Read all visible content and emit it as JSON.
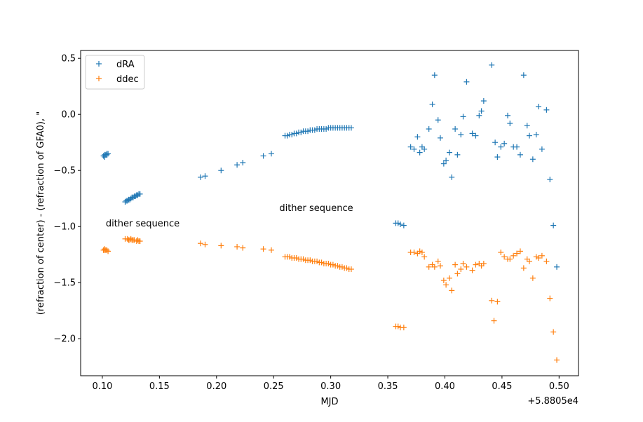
{
  "chart_data": {
    "type": "scatter",
    "title": "",
    "xlabel": "MJD",
    "ylabel": "(refraction of center) - (refraction of GFA0), \"",
    "x_offset_label": "+5.8805e4",
    "xlim": [
      0.081,
      0.517
    ],
    "ylim": [
      -2.33,
      0.57
    ],
    "x_ticks": [
      0.1,
      0.15,
      0.2,
      0.25,
      0.3,
      0.35,
      0.4,
      0.45,
      0.5
    ],
    "x_tick_labels": [
      "0.10",
      "0.15",
      "0.20",
      "0.25",
      "0.30",
      "0.35",
      "0.40",
      "0.45",
      "0.50"
    ],
    "y_ticks": [
      0.5,
      0.0,
      -0.5,
      -1.0,
      -1.5,
      -2.0
    ],
    "y_tick_labels": [
      "0.5",
      "0.0",
      "−0.5",
      "−1.0",
      "−1.5",
      "−2.0"
    ],
    "grid": false,
    "legend_position": "top-left",
    "annotations": [
      {
        "text": "dither sequence",
        "x": 0.103,
        "y": -1.0
      },
      {
        "text": "dither sequence",
        "x": 0.255,
        "y": -0.86
      }
    ],
    "series": [
      {
        "name": "dRA",
        "color": "#1f77b4",
        "marker": "+",
        "points": [
          [
            0.101,
            -0.37
          ],
          [
            0.102,
            -0.36
          ],
          [
            0.103,
            -0.36
          ],
          [
            0.104,
            -0.35
          ],
          [
            0.105,
            -0.35
          ],
          [
            0.102,
            -0.38
          ],
          [
            0.104,
            -0.36
          ],
          [
            0.12,
            -0.78
          ],
          [
            0.121,
            -0.77
          ],
          [
            0.122,
            -0.77
          ],
          [
            0.123,
            -0.76
          ],
          [
            0.124,
            -0.76
          ],
          [
            0.125,
            -0.75
          ],
          [
            0.126,
            -0.74
          ],
          [
            0.127,
            -0.74
          ],
          [
            0.128,
            -0.73
          ],
          [
            0.129,
            -0.73
          ],
          [
            0.13,
            -0.72
          ],
          [
            0.131,
            -0.72
          ],
          [
            0.132,
            -0.71
          ],
          [
            0.133,
            -0.71
          ],
          [
            0.186,
            -0.56
          ],
          [
            0.19,
            -0.55
          ],
          [
            0.204,
            -0.5
          ],
          [
            0.218,
            -0.45
          ],
          [
            0.223,
            -0.43
          ],
          [
            0.241,
            -0.37
          ],
          [
            0.248,
            -0.35
          ],
          [
            0.26,
            -0.19
          ],
          [
            0.262,
            -0.19
          ],
          [
            0.264,
            -0.18
          ],
          [
            0.266,
            -0.18
          ],
          [
            0.268,
            -0.17
          ],
          [
            0.27,
            -0.17
          ],
          [
            0.272,
            -0.16
          ],
          [
            0.274,
            -0.16
          ],
          [
            0.276,
            -0.15
          ],
          [
            0.278,
            -0.15
          ],
          [
            0.28,
            -0.15
          ],
          [
            0.282,
            -0.14
          ],
          [
            0.284,
            -0.14
          ],
          [
            0.286,
            -0.14
          ],
          [
            0.288,
            -0.13
          ],
          [
            0.29,
            -0.13
          ],
          [
            0.292,
            -0.13
          ],
          [
            0.294,
            -0.13
          ],
          [
            0.296,
            -0.13
          ],
          [
            0.298,
            -0.12
          ],
          [
            0.3,
            -0.12
          ],
          [
            0.302,
            -0.12
          ],
          [
            0.304,
            -0.12
          ],
          [
            0.306,
            -0.12
          ],
          [
            0.308,
            -0.12
          ],
          [
            0.31,
            -0.12
          ],
          [
            0.312,
            -0.12
          ],
          [
            0.314,
            -0.12
          ],
          [
            0.316,
            -0.12
          ],
          [
            0.318,
            -0.12
          ],
          [
            0.357,
            -0.97
          ],
          [
            0.359,
            -0.97
          ],
          [
            0.361,
            -0.98
          ],
          [
            0.364,
            -0.99
          ],
          [
            0.37,
            -0.29
          ],
          [
            0.373,
            -0.31
          ],
          [
            0.376,
            -0.2
          ],
          [
            0.378,
            -0.34
          ],
          [
            0.38,
            -0.29
          ],
          [
            0.382,
            -0.31
          ],
          [
            0.386,
            -0.13
          ],
          [
            0.389,
            0.09
          ],
          [
            0.391,
            0.35
          ],
          [
            0.394,
            -0.05
          ],
          [
            0.396,
            -0.21
          ],
          [
            0.399,
            -0.44
          ],
          [
            0.401,
            -0.41
          ],
          [
            0.404,
            -0.34
          ],
          [
            0.406,
            -0.56
          ],
          [
            0.409,
            -0.13
          ],
          [
            0.411,
            -0.36
          ],
          [
            0.414,
            -0.18
          ],
          [
            0.416,
            -0.02
          ],
          [
            0.419,
            0.29
          ],
          [
            0.424,
            -0.17
          ],
          [
            0.427,
            -0.19
          ],
          [
            0.43,
            -0.01
          ],
          [
            0.432,
            0.03
          ],
          [
            0.434,
            0.12
          ],
          [
            0.441,
            0.44
          ],
          [
            0.444,
            -0.25
          ],
          [
            0.446,
            -0.38
          ],
          [
            0.449,
            -0.29
          ],
          [
            0.452,
            -0.26
          ],
          [
            0.455,
            -0.01
          ],
          [
            0.457,
            -0.08
          ],
          [
            0.46,
            -0.29
          ],
          [
            0.463,
            -0.29
          ],
          [
            0.466,
            -0.36
          ],
          [
            0.469,
            0.35
          ],
          [
            0.472,
            -0.1
          ],
          [
            0.474,
            -0.19
          ],
          [
            0.477,
            -0.4
          ],
          [
            0.48,
            -0.18
          ],
          [
            0.482,
            0.07
          ],
          [
            0.485,
            -0.31
          ],
          [
            0.489,
            0.04
          ],
          [
            0.492,
            -0.58
          ],
          [
            0.495,
            -0.99
          ],
          [
            0.498,
            -1.36
          ]
        ]
      },
      {
        "name": "ddec",
        "color": "#ff7f0e",
        "marker": "+",
        "points": [
          [
            0.101,
            -1.21
          ],
          [
            0.102,
            -1.2
          ],
          [
            0.103,
            -1.21
          ],
          [
            0.104,
            -1.21
          ],
          [
            0.105,
            -1.22
          ],
          [
            0.102,
            -1.21
          ],
          [
            0.12,
            -1.11
          ],
          [
            0.122,
            -1.11
          ],
          [
            0.123,
            -1.12
          ],
          [
            0.124,
            -1.12
          ],
          [
            0.125,
            -1.11
          ],
          [
            0.126,
            -1.12
          ],
          [
            0.127,
            -1.12
          ],
          [
            0.128,
            -1.12
          ],
          [
            0.13,
            -1.13
          ],
          [
            0.131,
            -1.12
          ],
          [
            0.132,
            -1.13
          ],
          [
            0.133,
            -1.13
          ],
          [
            0.186,
            -1.15
          ],
          [
            0.19,
            -1.16
          ],
          [
            0.204,
            -1.17
          ],
          [
            0.218,
            -1.18
          ],
          [
            0.223,
            -1.19
          ],
          [
            0.241,
            -1.2
          ],
          [
            0.248,
            -1.21
          ],
          [
            0.26,
            -1.27
          ],
          [
            0.262,
            -1.27
          ],
          [
            0.264,
            -1.27
          ],
          [
            0.266,
            -1.28
          ],
          [
            0.268,
            -1.28
          ],
          [
            0.27,
            -1.28
          ],
          [
            0.272,
            -1.29
          ],
          [
            0.274,
            -1.29
          ],
          [
            0.276,
            -1.29
          ],
          [
            0.278,
            -1.3
          ],
          [
            0.28,
            -1.3
          ],
          [
            0.282,
            -1.3
          ],
          [
            0.284,
            -1.31
          ],
          [
            0.286,
            -1.31
          ],
          [
            0.288,
            -1.31
          ],
          [
            0.29,
            -1.32
          ],
          [
            0.292,
            -1.32
          ],
          [
            0.294,
            -1.33
          ],
          [
            0.296,
            -1.33
          ],
          [
            0.298,
            -1.33
          ],
          [
            0.3,
            -1.34
          ],
          [
            0.302,
            -1.34
          ],
          [
            0.304,
            -1.35
          ],
          [
            0.306,
            -1.35
          ],
          [
            0.308,
            -1.36
          ],
          [
            0.31,
            -1.36
          ],
          [
            0.312,
            -1.37
          ],
          [
            0.314,
            -1.37
          ],
          [
            0.316,
            -1.38
          ],
          [
            0.318,
            -1.38
          ],
          [
            0.357,
            -1.89
          ],
          [
            0.359,
            -1.89
          ],
          [
            0.361,
            -1.9
          ],
          [
            0.364,
            -1.9
          ],
          [
            0.37,
            -1.23
          ],
          [
            0.373,
            -1.23
          ],
          [
            0.376,
            -1.24
          ],
          [
            0.378,
            -1.22
          ],
          [
            0.38,
            -1.23
          ],
          [
            0.382,
            -1.27
          ],
          [
            0.386,
            -1.36
          ],
          [
            0.389,
            -1.34
          ],
          [
            0.391,
            -1.36
          ],
          [
            0.394,
            -1.31
          ],
          [
            0.396,
            -1.35
          ],
          [
            0.399,
            -1.48
          ],
          [
            0.401,
            -1.52
          ],
          [
            0.404,
            -1.46
          ],
          [
            0.406,
            -1.57
          ],
          [
            0.409,
            -1.34
          ],
          [
            0.411,
            -1.42
          ],
          [
            0.414,
            -1.38
          ],
          [
            0.416,
            -1.33
          ],
          [
            0.419,
            -1.36
          ],
          [
            0.424,
            -1.39
          ],
          [
            0.427,
            -1.34
          ],
          [
            0.43,
            -1.33
          ],
          [
            0.432,
            -1.35
          ],
          [
            0.434,
            -1.33
          ],
          [
            0.441,
            -1.66
          ],
          [
            0.443,
            -1.84
          ],
          [
            0.446,
            -1.67
          ],
          [
            0.449,
            -1.23
          ],
          [
            0.452,
            -1.27
          ],
          [
            0.455,
            -1.29
          ],
          [
            0.457,
            -1.29
          ],
          [
            0.46,
            -1.26
          ],
          [
            0.463,
            -1.24
          ],
          [
            0.466,
            -1.22
          ],
          [
            0.469,
            -1.37
          ],
          [
            0.472,
            -1.29
          ],
          [
            0.474,
            -1.31
          ],
          [
            0.477,
            -1.46
          ],
          [
            0.48,
            -1.27
          ],
          [
            0.482,
            -1.28
          ],
          [
            0.485,
            -1.26
          ],
          [
            0.489,
            -1.31
          ],
          [
            0.492,
            -1.64
          ],
          [
            0.495,
            -1.94
          ],
          [
            0.498,
            -2.19
          ]
        ]
      }
    ]
  }
}
